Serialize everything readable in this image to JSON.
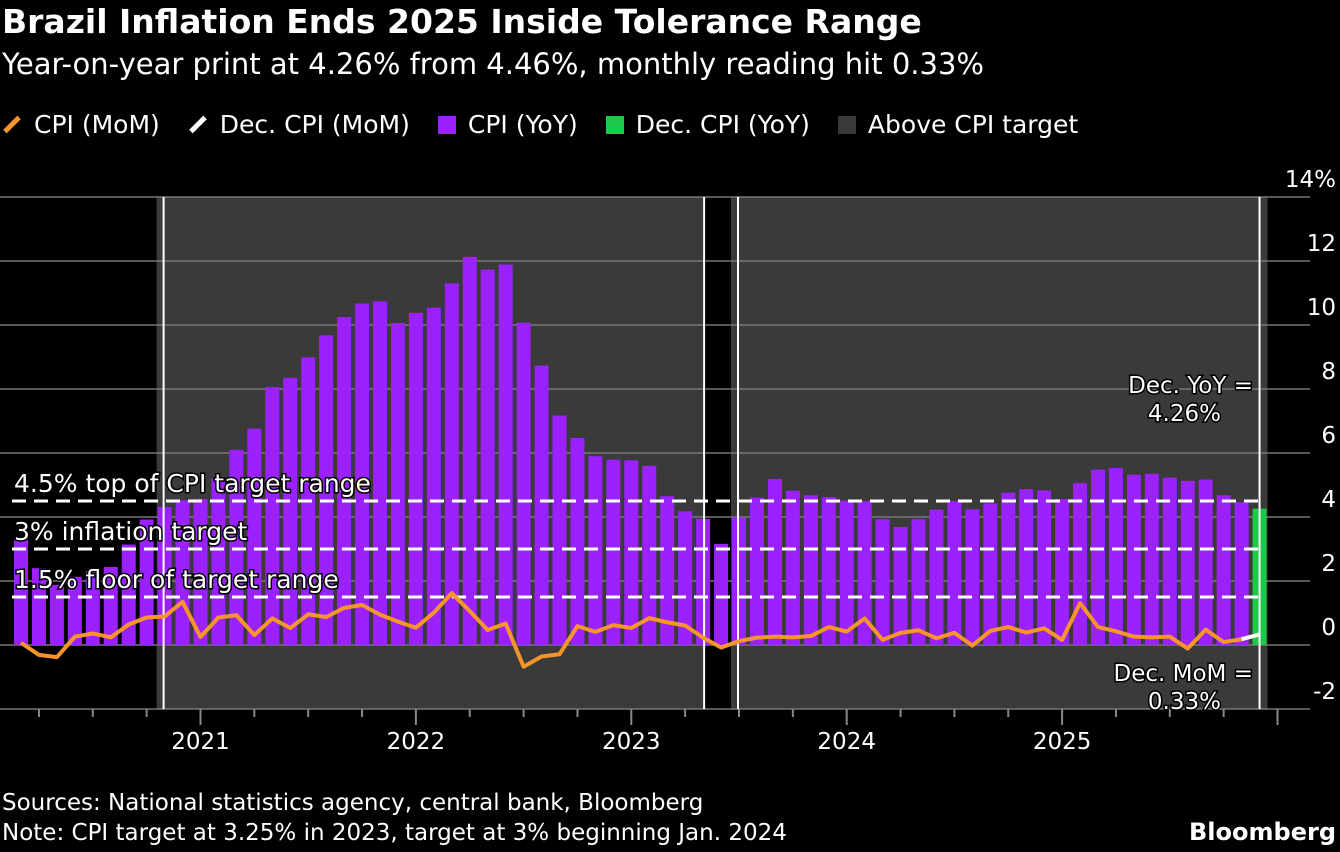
{
  "title": "Brazil Inflation Ends 2025 Inside Tolerance Range",
  "subtitle": "Year-on-year print at 4.26% from 4.46%, monthly reading hit 0.33%",
  "legend": [
    {
      "label": "CPI (MoM)",
      "color": "#f7952a",
      "kind": "line"
    },
    {
      "label": "Dec. CPI (MoM)",
      "color": "#ffffff",
      "kind": "line"
    },
    {
      "label": "CPI (YoY)",
      "color": "#9b22ff",
      "kind": "box"
    },
    {
      "label": "Dec. CPI (YoY)",
      "color": "#1ec84a",
      "kind": "box"
    },
    {
      "label": "Above CPI target",
      "color": "#3a3a3a",
      "kind": "box"
    }
  ],
  "footer": {
    "sources": "Sources: National statistics agency, central bank, Bloomberg",
    "note": "Note: CPI target at 3.25% in 2023, target at 3% beginning Jan. 2024",
    "logo": "Bloomberg"
  },
  "chart_data": {
    "type": "bar",
    "start_month": "2020-03",
    "xlabels": [
      "2021",
      "2022",
      "2023",
      "2024",
      "2025"
    ],
    "ylim": [
      -2,
      14
    ],
    "yticks": [
      "14%",
      "12",
      "10",
      "8",
      "6",
      "4",
      "2",
      "0",
      "-2"
    ],
    "grid": true,
    "series": [
      {
        "name": "CPI (YoY)",
        "type": "bar",
        "values": [
          3.3,
          2.4,
          1.88,
          2.13,
          2.31,
          2.44,
          3.14,
          3.92,
          4.31,
          4.52,
          4.56,
          5.2,
          6.1,
          6.76,
          8.06,
          8.35,
          8.99,
          9.68,
          10.25,
          10.67,
          10.74,
          10.06,
          10.38,
          10.54,
          11.3,
          12.13,
          11.73,
          11.89,
          10.07,
          8.73,
          7.17,
          6.47,
          5.9,
          5.79,
          5.77,
          5.6,
          4.65,
          4.18,
          3.94,
          3.16,
          3.99,
          4.61,
          5.19,
          4.82,
          4.68,
          4.62,
          4.51,
          4.5,
          3.93,
          3.69,
          3.93,
          4.23,
          4.5,
          4.24,
          4.42,
          4.76,
          4.87,
          4.83,
          4.56,
          5.06,
          5.48,
          5.53,
          5.32,
          5.35,
          5.23,
          5.13,
          5.17,
          4.68,
          4.46,
          4.26
        ]
      },
      {
        "name": "CPI (MoM)",
        "type": "line",
        "values": [
          0.07,
          -0.31,
          -0.38,
          0.26,
          0.36,
          0.24,
          0.64,
          0.86,
          0.89,
          1.35,
          0.25,
          0.86,
          0.93,
          0.31,
          0.83,
          0.53,
          0.96,
          0.87,
          1.16,
          1.25,
          0.95,
          0.73,
          0.54,
          1.01,
          1.62,
          1.06,
          0.47,
          0.67,
          -0.68,
          -0.36,
          -0.29,
          0.59,
          0.41,
          0.62,
          0.53,
          0.84,
          0.71,
          0.61,
          0.23,
          -0.08,
          0.12,
          0.23,
          0.26,
          0.24,
          0.28,
          0.56,
          0.42,
          0.83,
          0.16,
          0.38,
          0.46,
          0.21,
          0.38,
          -0.02,
          0.44,
          0.56,
          0.39,
          0.52,
          0.16,
          1.31,
          0.56,
          0.43,
          0.26,
          0.24,
          0.26,
          -0.11,
          0.48,
          0.09,
          0.18,
          0.33
        ]
      }
    ],
    "above_target_periods": [
      [
        "2020-11",
        "2023-05"
      ],
      [
        "2023-07",
        "2025-12"
      ]
    ],
    "reference_lines": [
      {
        "value": 4.5,
        "label": "4.5% top of CPI target range"
      },
      {
        "value": 3,
        "label": "3% inflation target"
      },
      {
        "value": 1.5,
        "label": "1.5% floor of target range"
      }
    ],
    "annotations": [
      {
        "text": "Dec. YoY =",
        "text2": "4.26%"
      },
      {
        "text": "Dec. MoM =",
        "text2": "0.33%"
      }
    ]
  }
}
